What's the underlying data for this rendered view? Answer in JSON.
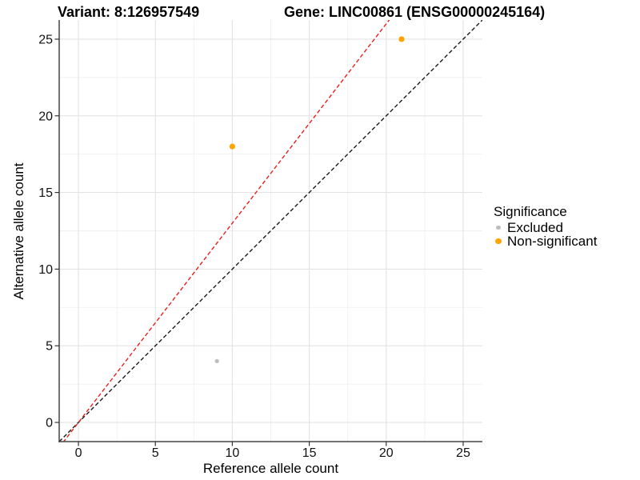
{
  "header": {
    "variant_title": "Variant: 8:126957549",
    "gene_title": "Gene: LINC00861 (ENSG00000245164)"
  },
  "chart_data": {
    "type": "scatter",
    "xlabel": "Reference allele count",
    "ylabel": "Alternative allele count",
    "xlim": [
      -1.25,
      26.25
    ],
    "ylim": [
      -1.25,
      26.25
    ],
    "xticks": [
      0,
      5,
      10,
      15,
      20,
      25
    ],
    "yticks": [
      0,
      5,
      10,
      15,
      20,
      25
    ],
    "minor_step": 2.5,
    "grid": "on",
    "series": [
      {
        "name": "Excluded",
        "color": "#BDBDBD",
        "marker_radius_px": 2.6,
        "points": [
          {
            "x": 9,
            "y": 4
          }
        ]
      },
      {
        "name": "Non-significant",
        "color": "#FFA500",
        "marker_radius_px": 3.6,
        "points": [
          {
            "x": 10,
            "y": 18
          },
          {
            "x": 21,
            "y": 25
          }
        ]
      }
    ],
    "lines": [
      {
        "name": "identity-line",
        "color": "#1A1A1A",
        "style": "dashed",
        "slope": 1,
        "intercept": 0
      },
      {
        "name": "ratio-line",
        "color": "#E8201E",
        "style": "dashed",
        "slope": 1.3,
        "intercept": 0
      }
    ],
    "legend": {
      "title": "Significance",
      "position": "right",
      "items": [
        {
          "label": "Excluded"
        },
        {
          "label": "Non-significant"
        }
      ]
    }
  }
}
